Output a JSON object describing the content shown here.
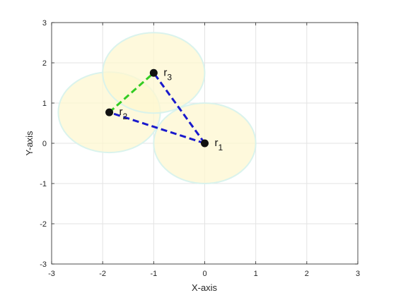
{
  "chart_data": {
    "type": "scatter",
    "title": "",
    "xlabel": "X-axis",
    "ylabel": "Y-axis",
    "xlim": [
      -3,
      3
    ],
    "ylim": [
      -3,
      3
    ],
    "xticks": [
      -3,
      -2,
      -1,
      0,
      1,
      2,
      3
    ],
    "yticks": [
      -3,
      -2,
      -1,
      0,
      1,
      2,
      3
    ],
    "xtick_labels": [
      "-3",
      "-2",
      "-1",
      "0",
      "1",
      "2",
      "3"
    ],
    "ytick_labels": [
      "-3",
      "-2",
      "-1",
      "0",
      "1",
      "2",
      "3"
    ],
    "grid": true,
    "points": [
      {
        "id": "r1",
        "base": "r",
        "sub": "1",
        "x": 0,
        "y": 0
      },
      {
        "id": "r2",
        "base": "r",
        "sub": "2",
        "x": -1.87,
        "y": 0.77
      },
      {
        "id": "r3",
        "base": "r",
        "sub": "3",
        "x": -1.0,
        "y": 1.75
      }
    ],
    "coverage_radius": 1.0,
    "links": [
      {
        "from": "r1",
        "to": "r2",
        "color": "#1a1acc"
      },
      {
        "from": "r1",
        "to": "r3",
        "color": "#1a1acc"
      },
      {
        "from": "r2",
        "to": "r3",
        "color": "#33cc22"
      }
    ],
    "colors": {
      "coverage_fill": "#fdf7d0",
      "coverage_edge": "#d6f2ec",
      "point": "#111111",
      "grid": "#e3e3e3",
      "axis": "#262626"
    }
  }
}
